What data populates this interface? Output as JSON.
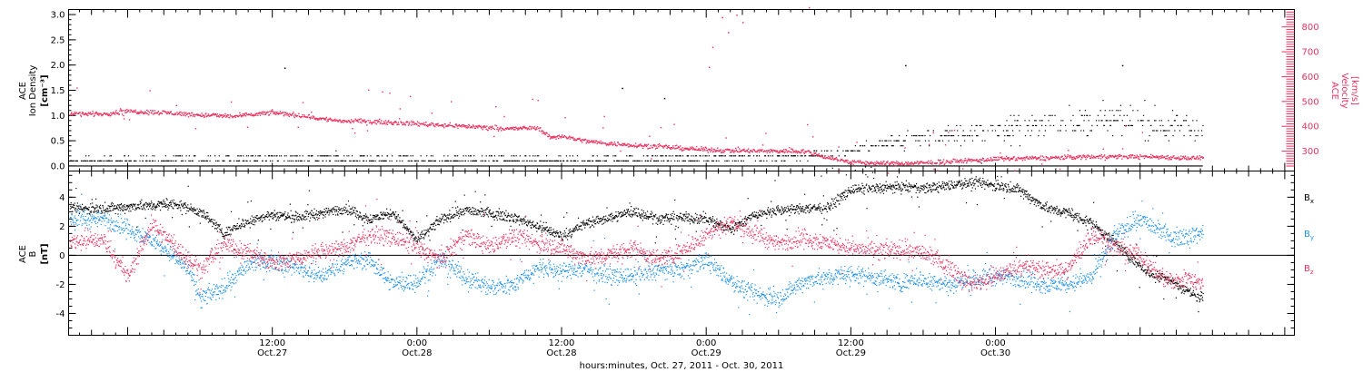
{
  "chart_data": [
    {
      "type": "scatter",
      "panel": "top",
      "y_left_label": [
        "ACE",
        "Ion Density",
        "[cm⁻³]"
      ],
      "y_right_label": [
        "ACE",
        "Velocity",
        "[km/s]"
      ],
      "y_left_ticks": [
        "0.0",
        "0.5",
        "1.0",
        "1.5",
        "2.0",
        "2.5",
        "3.0"
      ],
      "y_right_ticks": [
        "300",
        "400",
        "500",
        "600",
        "700",
        "800"
      ],
      "y_left_lim": [
        -0.1,
        3.1
      ],
      "y_right_lim": [
        220,
        870
      ],
      "colors": {
        "density": "#000000",
        "velocity": "#e8325f"
      },
      "density_baseline": 0.0,
      "density_levels": [
        0.1,
        0.2,
        0.3,
        0.4,
        0.5,
        0.6,
        0.7,
        0.8,
        0.9,
        1.0,
        1.1,
        1.2,
        1.3,
        1.4,
        1.5
      ],
      "density_trend_x": [
        -2,
        6,
        12,
        18,
        24,
        30,
        36,
        40,
        44,
        48,
        52,
        56,
        60,
        64,
        68,
        72,
        76,
        80,
        84,
        89
      ],
      "density_trend_y": [
        0.1,
        0.12,
        0.15,
        0.15,
        0.12,
        0.12,
        0.1,
        0.12,
        0.15,
        0.15,
        0.18,
        0.2,
        0.3,
        0.5,
        0.6,
        0.7,
        0.85,
        0.9,
        0.9,
        0.75
      ],
      "velocity_x": [
        -2,
        0,
        3,
        6,
        9,
        12,
        14,
        16,
        18,
        20,
        24,
        28,
        32,
        34,
        35,
        36,
        38,
        40,
        44,
        48,
        52,
        56,
        58,
        60,
        62,
        64,
        66,
        68,
        70,
        72,
        76,
        80,
        84,
        86,
        88,
        89
      ],
      "velocity_y": [
        450,
        460,
        455,
        445,
        440,
        455,
        445,
        430,
        420,
        420,
        410,
        400,
        390,
        395,
        355,
        360,
        340,
        330,
        318,
        305,
        300,
        300,
        275,
        255,
        252,
        250,
        252,
        258,
        262,
        268,
        272,
        278,
        278,
        276,
        272,
        272
      ]
    },
    {
      "type": "scatter",
      "panel": "bottom",
      "y_label": [
        "ACE",
        "B",
        "[nT]"
      ],
      "y_ticks": [
        "-4",
        "-2",
        "0",
        "2",
        "4"
      ],
      "ylim": [
        -5.5,
        5.8
      ],
      "series": [
        {
          "name": "Bx",
          "color": "#000000",
          "x": [
            -2,
            1,
            4,
            6,
            8,
            10,
            12,
            14,
            16,
            18,
            20,
            22,
            24,
            26,
            28,
            30,
            32,
            34,
            36,
            38,
            40,
            42,
            44,
            46,
            48,
            50,
            52,
            54,
            56,
            58,
            60,
            62,
            64,
            66,
            68,
            70,
            72,
            74,
            76,
            78,
            79,
            80,
            82,
            84,
            85,
            86,
            87,
            88,
            89
          ],
          "y": [
            3.2,
            3.4,
            3.5,
            3.0,
            1.5,
            2.4,
            2.8,
            2.6,
            2.9,
            3.2,
            2.5,
            2.9,
            1.0,
            2.5,
            3.1,
            2.9,
            2.6,
            2.0,
            1.3,
            2.2,
            2.6,
            3.0,
            2.5,
            2.6,
            2.5,
            1.8,
            2.8,
            3.1,
            3.2,
            3.3,
            4.5,
            4.6,
            4.7,
            4.6,
            4.8,
            5.0,
            4.8,
            4.5,
            3.3,
            2.9,
            2.5,
            2.2,
            0.8,
            -0.8,
            -1.3,
            -1.5,
            -2.0,
            -2.5,
            -2.9
          ]
        },
        {
          "name": "By",
          "color": "#1e90e6",
          "x": [
            -2,
            1,
            3,
            5,
            6,
            8,
            10,
            12,
            14,
            16,
            18,
            20,
            22,
            24,
            26,
            28,
            30,
            32,
            34,
            36,
            38,
            40,
            42,
            44,
            46,
            48,
            50,
            52,
            54,
            56,
            58,
            60,
            62,
            64,
            66,
            68,
            70,
            72,
            74,
            76,
            78,
            80,
            81,
            82,
            84,
            86,
            87,
            88,
            89
          ],
          "y": [
            2.5,
            1.5,
            0.5,
            -1.0,
            -3.0,
            -2.2,
            -0.6,
            -0.4,
            -0.8,
            -1.5,
            -0.5,
            -0.3,
            -2.0,
            -1.8,
            -0.3,
            -1.5,
            -2.2,
            -2.0,
            -0.8,
            -1.1,
            -0.9,
            -1.4,
            -1.5,
            -1.0,
            -1.0,
            -0.3,
            -1.8,
            -2.7,
            -3.0,
            -1.8,
            -1.5,
            -1.3,
            -1.5,
            -1.9,
            -1.6,
            -2.0,
            -1.7,
            -1.4,
            -1.6,
            -2.0,
            -2.0,
            -1.5,
            0.0,
            1.5,
            2.5,
            1.5,
            1.2,
            1.4,
            1.5
          ]
        },
        {
          "name": "Bz",
          "color": "#e8325f",
          "x": [
            -2,
            0,
            2,
            4,
            6,
            8,
            10,
            12,
            14,
            16,
            18,
            20,
            22,
            24,
            26,
            28,
            30,
            32,
            34,
            36,
            38,
            40,
            42,
            44,
            46,
            48,
            50,
            52,
            54,
            56,
            58,
            60,
            62,
            64,
            66,
            68,
            70,
            72,
            74,
            76,
            78,
            80,
            82,
            84,
            85,
            86,
            87,
            88,
            89
          ],
          "y": [
            1.0,
            -1.5,
            2.2,
            0.5,
            -1.0,
            0.8,
            0.2,
            -0.5,
            -0.2,
            0.3,
            0.5,
            1.5,
            1.2,
            0.5,
            -0.3,
            1.4,
            0.6,
            1.3,
            0.8,
            0.5,
            -0.2,
            0.0,
            0.5,
            -0.3,
            0.3,
            1.5,
            2.3,
            1.5,
            0.8,
            1.2,
            0.9,
            0.5,
            0.3,
            0.4,
            0.2,
            -0.7,
            -2.0,
            -1.5,
            -0.7,
            -1.0,
            -1.0,
            1.5,
            0.5,
            0.0,
            -1.0,
            -1.6,
            -1.8,
            -1.5,
            -2.0
          ]
        }
      ],
      "zero_line": true
    }
  ],
  "axes": {
    "x_ticks": [
      {
        "time": "12:00",
        "date": "Oct.27",
        "hour": 12
      },
      {
        "time": "0:00",
        "date": "Oct.28",
        "hour": 24
      },
      {
        "time": "12:00",
        "date": "Oct.28",
        "hour": 36
      },
      {
        "time": "0:00",
        "date": "Oct.29",
        "hour": 48
      },
      {
        "time": "12:00",
        "date": "Oct.29",
        "hour": 60
      },
      {
        "time": "0:00",
        "date": "Oct.30",
        "hour": 72
      }
    ],
    "x_range_hours": [
      -4.9,
      96.8
    ],
    "x_data_end_hour": 89.2,
    "x_label": "hours:minutes, Oct. 27, 2011 - Oct. 30, 2011"
  },
  "legend": {
    "bx": {
      "base": "B",
      "sub": "x",
      "color": "#000000"
    },
    "by": {
      "base": "B",
      "sub": "y",
      "color": "#1e90e6"
    },
    "bz": {
      "base": "B",
      "sub": "z",
      "color": "#e8325f"
    }
  }
}
